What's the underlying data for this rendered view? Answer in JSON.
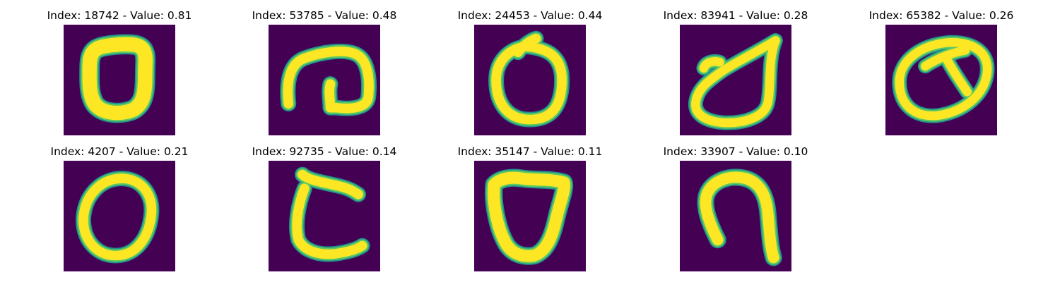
{
  "colors": {
    "background": "#440154",
    "stroke_core": "#fde725",
    "stroke_mid": "#5ec962",
    "stroke_edge": "#21918c"
  },
  "panels": [
    {
      "index_label": "Index: 18742 - Value: 0.81",
      "index": 18742,
      "value": 0.81,
      "glyph": "thick-rounded-square"
    },
    {
      "index_label": "Index: 53785 - Value: 0.48",
      "index": 53785,
      "value": 0.48,
      "glyph": "spiral-hook"
    },
    {
      "index_label": "Index: 24453 - Value: 0.44",
      "index": 24453,
      "value": 0.44,
      "glyph": "circle-with-tick"
    },
    {
      "index_label": "Index: 83941 - Value: 0.28",
      "index": 83941,
      "value": 0.28,
      "glyph": "teardrop-loop"
    },
    {
      "index_label": "Index: 65382 - Value: 0.26",
      "index": 65382,
      "value": 0.26,
      "glyph": "divided-oval"
    },
    {
      "index_label": "Index: 4207 - Value: 0.21",
      "index": 4207,
      "value": 0.21,
      "glyph": "oval"
    },
    {
      "index_label": "Index: 92735 - Value: 0.14",
      "index": 92735,
      "value": 0.14,
      "glyph": "c-shape"
    },
    {
      "index_label": "Index: 35147 - Value: 0.11",
      "index": 35147,
      "value": 0.11,
      "glyph": "shield-loop"
    },
    {
      "index_label": "Index: 33907 - Value: 0.10",
      "index": 33907,
      "value": 0.1,
      "glyph": "arch"
    }
  ]
}
